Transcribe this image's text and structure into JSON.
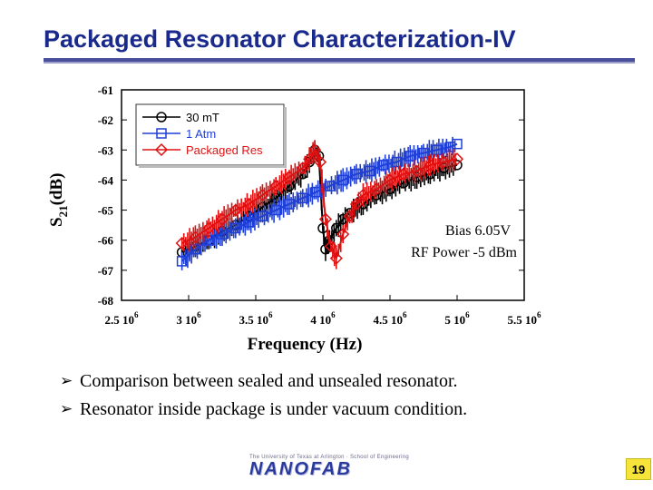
{
  "slide": {
    "title": "Packaged Resonator Characterization-IV",
    "bullets": [
      "Comparison between sealed and unsealed resonator.",
      "Resonator inside package is under vacuum condition."
    ],
    "bullet_icon": "arrow-bullet-icon",
    "logo_text_top": "The University of Texas at Arlington · School of Engineering",
    "logo_text": "NANOFAB",
    "page_number": "19",
    "colors": {
      "title": "#1a2a8c",
      "accent_rule": "#4a4f9c",
      "page_badge": "#f6e43a"
    }
  },
  "chart_data": {
    "type": "line",
    "xlabel": "Frequency (Hz)",
    "ylabel_main": "S",
    "ylabel_sub": "21",
    "ylabel_unit": "(dB)",
    "xlim": [
      2500000,
      5500000
    ],
    "ylim": [
      -68,
      -61
    ],
    "x_ticks": [
      {
        "value": 2500000,
        "mant": "2.5 10",
        "exp": "6"
      },
      {
        "value": 3000000,
        "mant": "3 10",
        "exp": "6"
      },
      {
        "value": 3500000,
        "mant": "3.5 10",
        "exp": "6"
      },
      {
        "value": 4000000,
        "mant": "4 10",
        "exp": "6"
      },
      {
        "value": 4500000,
        "mant": "4.5 10",
        "exp": "6"
      },
      {
        "value": 5000000,
        "mant": "5 10",
        "exp": "6"
      },
      {
        "value": 5500000,
        "mant": "5.5 10",
        "exp": "6"
      }
    ],
    "y_ticks": [
      -61,
      -62,
      -63,
      -64,
      -65,
      -66,
      -67,
      -68
    ],
    "legend_position": "top-left",
    "annotations": [
      "Bias 6.05V",
      "RF Power -5 dBm"
    ],
    "series": [
      {
        "name": "30 mT",
        "color": "#000000",
        "marker": "circle",
        "x": [
          2950000,
          3050000,
          3150000,
          3250000,
          3350000,
          3450000,
          3550000,
          3650000,
          3750000,
          3850000,
          3900000,
          3940000,
          3970000,
          4000000,
          4020000,
          4050000,
          4100000,
          4150000,
          4200000,
          4300000,
          4400000,
          4500000,
          4600000,
          4700000,
          4800000,
          4900000,
          5000000
        ],
        "y": [
          -66.4,
          -66.2,
          -66.0,
          -65.7,
          -65.5,
          -65.2,
          -64.9,
          -64.6,
          -64.2,
          -63.8,
          -63.4,
          -63.0,
          -63.2,
          -65.6,
          -66.3,
          -66.0,
          -65.6,
          -65.3,
          -65.1,
          -64.8,
          -64.5,
          -64.3,
          -64.1,
          -63.9,
          -63.8,
          -63.6,
          -63.5
        ]
      },
      {
        "name": "1 Atm",
        "color": "#1f3fd6",
        "marker": "square",
        "x": [
          2950000,
          3050000,
          3150000,
          3250000,
          3350000,
          3450000,
          3550000,
          3650000,
          3750000,
          3850000,
          3950000,
          4050000,
          4150000,
          4250000,
          4350000,
          4450000,
          4550000,
          4650000,
          4750000,
          4850000,
          4950000,
          5000000
        ],
        "y": [
          -66.7,
          -66.3,
          -66.0,
          -65.8,
          -65.6,
          -65.4,
          -65.2,
          -65.0,
          -64.8,
          -64.6,
          -64.4,
          -64.2,
          -64.0,
          -63.8,
          -63.7,
          -63.5,
          -63.4,
          -63.2,
          -63.1,
          -63.0,
          -62.9,
          -62.8
        ]
      },
      {
        "name": "Packaged Res",
        "color": "#e01010",
        "marker": "diamond",
        "x": [
          2950000,
          3050000,
          3150000,
          3250000,
          3350000,
          3450000,
          3550000,
          3650000,
          3750000,
          3850000,
          3900000,
          3940000,
          3980000,
          4020000,
          4060000,
          4100000,
          4150000,
          4200000,
          4250000,
          4300000,
          4400000,
          4500000,
          4600000,
          4700000,
          4800000,
          4900000,
          5000000
        ],
        "y": [
          -66.1,
          -65.9,
          -65.6,
          -65.3,
          -65.0,
          -64.8,
          -64.5,
          -64.2,
          -63.9,
          -63.6,
          -63.3,
          -63.0,
          -63.4,
          -65.3,
          -66.2,
          -66.6,
          -65.8,
          -65.2,
          -64.8,
          -64.5,
          -64.3,
          -64.0,
          -63.8,
          -63.7,
          -63.5,
          -63.4,
          -63.3
        ]
      }
    ]
  }
}
